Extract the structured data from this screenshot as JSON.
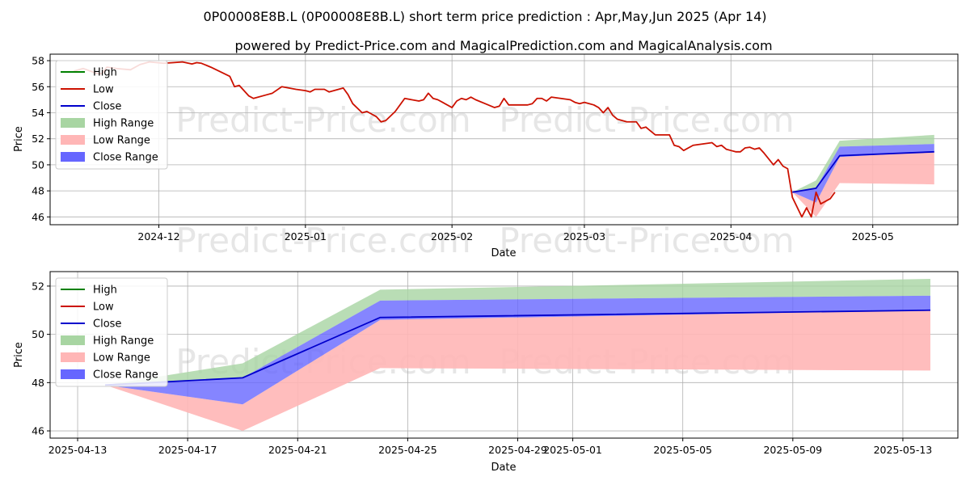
{
  "title_line1": "0P00008E8B.L (0P00008E8B.L) short term price prediction : Apr,May,Jun 2025 (Apr 14)",
  "title_line2": "powered by Predict-Price.com and MagicalPrediction.com and MagicalAnalysis.com",
  "watermark": "Predict-Price.com",
  "colors": {
    "high": "#008000",
    "low": "#cc1100",
    "close": "#0000cc",
    "high_range": "#a8d5a2",
    "low_range": "#ffb6b6",
    "close_range": "#6666ff",
    "grid": "#b0b0b0"
  },
  "legend": [
    "High",
    "Low",
    "Close",
    "High Range",
    "Low Range",
    "Close Range"
  ],
  "chart_data": [
    {
      "type": "line",
      "xlabel": "Date",
      "ylabel": "Price",
      "ylim": [
        45.4,
        58.5
      ],
      "y_ticks": [
        46,
        48,
        50,
        52,
        54,
        56,
        58
      ],
      "x_ticks": [
        "2024-12",
        "2025-01",
        "2025-02",
        "2025-03",
        "2025-04",
        "2025-05"
      ],
      "grid": true,
      "legend_position": "top-left",
      "history_low": [
        [
          "2024-11-13",
          57.2
        ],
        [
          "2024-11-15",
          57.4
        ],
        [
          "2024-11-18",
          57.0
        ],
        [
          "2024-11-19",
          57.0
        ],
        [
          "2024-11-20",
          57.5
        ],
        [
          "2024-11-22",
          57.4
        ],
        [
          "2024-11-25",
          57.3
        ],
        [
          "2024-11-27",
          57.7
        ],
        [
          "2024-11-29",
          57.9
        ],
        [
          "2024-12-02",
          57.8
        ],
        [
          "2024-12-04",
          57.85
        ],
        [
          "2024-12-06",
          57.9
        ],
        [
          "2024-12-08",
          57.75
        ],
        [
          "2024-12-09",
          57.85
        ],
        [
          "2024-12-10",
          57.8
        ],
        [
          "2024-12-12",
          57.5
        ],
        [
          "2024-12-16",
          56.8
        ],
        [
          "2024-12-17",
          56.0
        ],
        [
          "2024-12-18",
          56.1
        ],
        [
          "2024-12-20",
          55.3
        ],
        [
          "2024-12-21",
          55.1
        ],
        [
          "2024-12-24",
          55.4
        ],
        [
          "2024-12-25",
          55.5
        ],
        [
          "2024-12-27",
          56.0
        ],
        [
          "2024-12-30",
          55.8
        ],
        [
          "2025-01-01",
          55.7
        ],
        [
          "2025-01-02",
          55.6
        ],
        [
          "2025-01-03",
          55.8
        ],
        [
          "2025-01-05",
          55.8
        ],
        [
          "2025-01-06",
          55.6
        ],
        [
          "2025-01-08",
          55.8
        ],
        [
          "2025-01-09",
          55.9
        ],
        [
          "2025-01-10",
          55.4
        ],
        [
          "2025-01-11",
          54.7
        ],
        [
          "2025-01-13",
          54.0
        ],
        [
          "2025-01-14",
          54.1
        ],
        [
          "2025-01-16",
          53.7
        ],
        [
          "2025-01-17",
          53.3
        ],
        [
          "2025-01-18",
          53.4
        ],
        [
          "2025-01-20",
          54.1
        ],
        [
          "2025-01-22",
          55.1
        ],
        [
          "2025-01-25",
          54.9
        ],
        [
          "2025-01-26",
          55.0
        ],
        [
          "2025-01-27",
          55.5
        ],
        [
          "2025-01-28",
          55.1
        ],
        [
          "2025-01-29",
          55.0
        ],
        [
          "2025-01-30",
          54.8
        ],
        [
          "2025-02-01",
          54.4
        ],
        [
          "2025-02-02",
          54.9
        ],
        [
          "2025-02-03",
          55.1
        ],
        [
          "2025-02-04",
          55.0
        ],
        [
          "2025-02-05",
          55.2
        ],
        [
          "2025-02-06",
          55.0
        ],
        [
          "2025-02-08",
          54.7
        ],
        [
          "2025-02-10",
          54.4
        ],
        [
          "2025-02-11",
          54.5
        ],
        [
          "2025-02-12",
          55.1
        ],
        [
          "2025-02-13",
          54.6
        ],
        [
          "2025-02-17",
          54.6
        ],
        [
          "2025-02-18",
          54.7
        ],
        [
          "2025-02-19",
          55.1
        ],
        [
          "2025-02-20",
          55.1
        ],
        [
          "2025-02-21",
          54.9
        ],
        [
          "2025-02-22",
          55.2
        ],
        [
          "2025-02-24",
          55.1
        ],
        [
          "2025-02-26",
          55.0
        ],
        [
          "2025-02-27",
          54.8
        ],
        [
          "2025-02-28",
          54.7
        ],
        [
          "2025-03-01",
          54.8
        ],
        [
          "2025-03-03",
          54.6
        ],
        [
          "2025-03-04",
          54.4
        ],
        [
          "2025-03-05",
          54.0
        ],
        [
          "2025-03-06",
          54.4
        ],
        [
          "2025-03-07",
          53.8
        ],
        [
          "2025-03-08",
          53.5
        ],
        [
          "2025-03-10",
          53.3
        ],
        [
          "2025-03-12",
          53.3
        ],
        [
          "2025-03-13",
          52.8
        ],
        [
          "2025-03-14",
          52.9
        ],
        [
          "2025-03-15",
          52.6
        ],
        [
          "2025-03-16",
          52.3
        ],
        [
          "2025-03-19",
          52.3
        ],
        [
          "2025-03-20",
          51.5
        ],
        [
          "2025-03-21",
          51.4
        ],
        [
          "2025-03-22",
          51.1
        ],
        [
          "2025-03-24",
          51.5
        ],
        [
          "2025-03-26",
          51.6
        ],
        [
          "2025-03-28",
          51.7
        ],
        [
          "2025-03-29",
          51.4
        ],
        [
          "2025-03-30",
          51.5
        ],
        [
          "2025-03-31",
          51.2
        ],
        [
          "2025-04-01",
          51.1
        ],
        [
          "2025-04-02",
          51.0
        ],
        [
          "2025-04-03",
          51.0
        ],
        [
          "2025-04-04",
          51.3
        ],
        [
          "2025-04-05",
          51.35
        ],
        [
          "2025-04-06",
          51.2
        ],
        [
          "2025-04-07",
          51.3
        ],
        [
          "2025-04-08",
          50.9
        ],
        [
          "2025-04-10",
          50.0
        ],
        [
          "2025-04-11",
          50.4
        ],
        [
          "2025-04-12",
          49.9
        ],
        [
          "2025-04-13",
          49.7
        ],
        [
          "2025-04-14",
          47.5
        ],
        [
          "2025-04-16",
          46.0
        ],
        [
          "2025-04-17",
          46.7
        ],
        [
          "2025-04-18",
          46.0
        ],
        [
          "2025-04-19",
          47.9
        ],
        [
          "2025-04-20",
          47.0
        ],
        [
          "2025-04-22",
          47.4
        ],
        [
          "2025-04-23",
          47.9
        ]
      ],
      "forecast_x": [
        "2025-04-14",
        "2025-04-19",
        "2025-04-24",
        "2025-05-14"
      ],
      "close": [
        47.9,
        48.2,
        50.7,
        51.0
      ],
      "close_range": [
        [
          47.9,
          47.9
        ],
        [
          47.1,
          48.2
        ],
        [
          50.6,
          51.4
        ],
        [
          51.0,
          51.6
        ]
      ],
      "high_range": [
        [
          47.9,
          47.9
        ],
        [
          48.2,
          48.8
        ],
        [
          51.4,
          51.85
        ],
        [
          51.6,
          52.3
        ]
      ],
      "low_range": [
        [
          47.9,
          47.9
        ],
        [
          46.0,
          47.1
        ],
        [
          48.6,
          50.6
        ],
        [
          48.5,
          51.0
        ]
      ]
    },
    {
      "type": "line",
      "xlabel": "Date",
      "ylabel": "Price",
      "ylim": [
        45.7,
        52.6
      ],
      "y_ticks": [
        46,
        48,
        50,
        52
      ],
      "x_ticks": [
        "2025-04-13",
        "2025-04-17",
        "2025-04-21",
        "2025-04-25",
        "2025-04-29",
        "2025-05-01",
        "2025-05-05",
        "2025-05-09",
        "2025-05-13"
      ],
      "grid": true,
      "legend_position": "top-left",
      "forecast_x": [
        "2025-04-14",
        "2025-04-19",
        "2025-04-24",
        "2025-05-14"
      ],
      "close": [
        47.9,
        48.2,
        50.7,
        51.0
      ],
      "close_range": [
        [
          47.9,
          47.9
        ],
        [
          47.1,
          48.2
        ],
        [
          50.6,
          51.4
        ],
        [
          51.0,
          51.6
        ]
      ],
      "high_range": [
        [
          47.9,
          47.9
        ],
        [
          48.2,
          48.8
        ],
        [
          51.4,
          51.85
        ],
        [
          51.6,
          52.3
        ]
      ],
      "low_range": [
        [
          47.9,
          47.9
        ],
        [
          46.0,
          47.1
        ],
        [
          48.6,
          50.6
        ],
        [
          48.5,
          51.0
        ]
      ]
    }
  ]
}
